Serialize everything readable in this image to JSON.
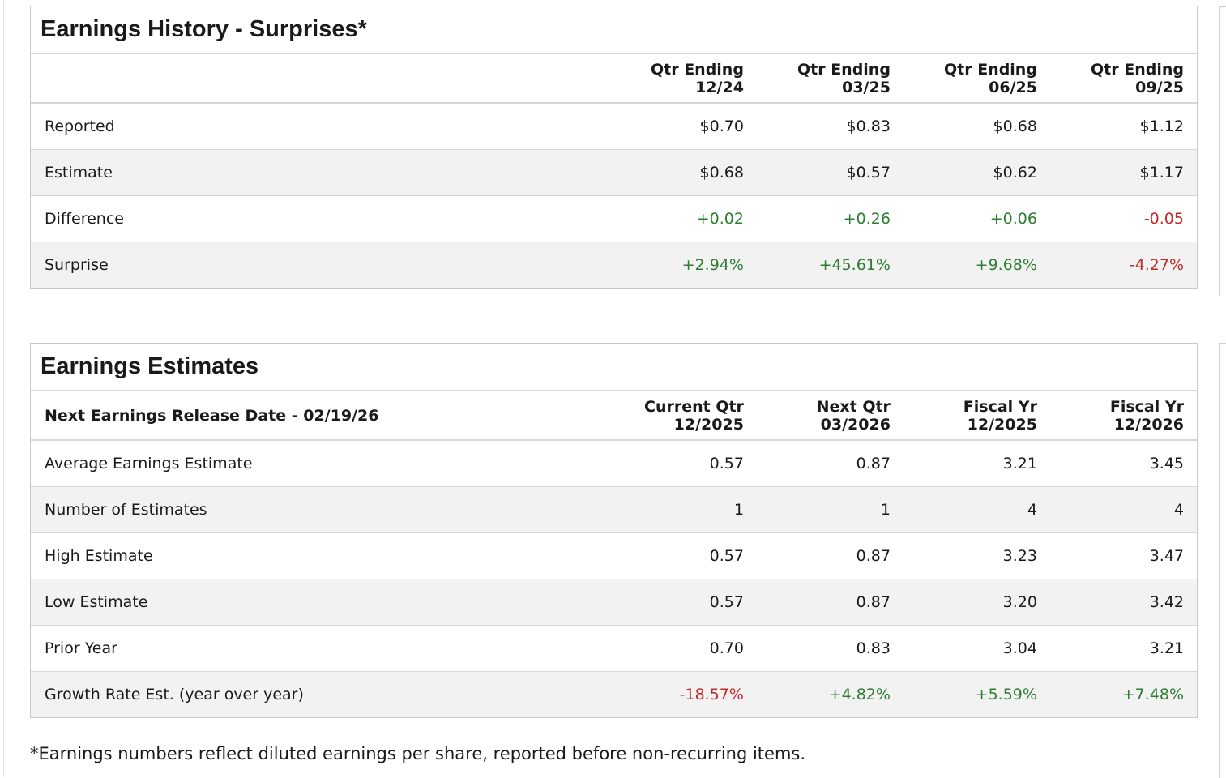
{
  "colors": {
    "positive": "#2e7d32",
    "negative": "#c62828",
    "header_border": "#d7d7d7",
    "alt_row": "#f2f2f2"
  },
  "history": {
    "title": "Earnings History - Surprises*",
    "columns": [
      {
        "line1": "Qtr Ending",
        "line2": "12/24"
      },
      {
        "line1": "Qtr Ending",
        "line2": "03/25"
      },
      {
        "line1": "Qtr Ending",
        "line2": "06/25"
      },
      {
        "line1": "Qtr Ending",
        "line2": "09/25"
      }
    ],
    "rows": [
      {
        "label": "Reported",
        "values": [
          "$0.70",
          "$0.83",
          "$0.68",
          "$1.12"
        ]
      },
      {
        "label": "Estimate",
        "values": [
          "$0.68",
          "$0.57",
          "$0.62",
          "$1.17"
        ]
      },
      {
        "label": "Difference",
        "values": [
          "+0.02",
          "+0.26",
          "+0.06",
          "-0.05"
        ]
      },
      {
        "label": "Surprise",
        "values": [
          "+2.94%",
          "+45.61%",
          "+9.68%",
          "-4.27%"
        ]
      }
    ]
  },
  "estimates": {
    "title": "Earnings Estimates",
    "release_label": "Next Earnings Release Date - 02/19/26",
    "columns": [
      {
        "line1": "Current Qtr",
        "line2": "12/2025"
      },
      {
        "line1": "Next Qtr",
        "line2": "03/2026"
      },
      {
        "line1": "Fiscal Yr",
        "line2": "12/2025"
      },
      {
        "line1": "Fiscal Yr",
        "line2": "12/2026"
      }
    ],
    "rows": [
      {
        "label": "Average Earnings Estimate",
        "values": [
          "0.57",
          "0.87",
          "3.21",
          "3.45"
        ]
      },
      {
        "label": "Number of Estimates",
        "values": [
          "1",
          "1",
          "4",
          "4"
        ]
      },
      {
        "label": "High Estimate",
        "values": [
          "0.57",
          "0.87",
          "3.23",
          "3.47"
        ]
      },
      {
        "label": "Low Estimate",
        "values": [
          "0.57",
          "0.87",
          "3.20",
          "3.42"
        ]
      },
      {
        "label": "Prior Year",
        "values": [
          "0.70",
          "0.83",
          "3.04",
          "3.21"
        ]
      },
      {
        "label": "Growth Rate Est. (year over year)",
        "values": [
          "-18.57%",
          "+4.82%",
          "+5.59%",
          "+7.48%"
        ]
      }
    ]
  },
  "footnote": "*Earnings numbers reflect diluted earnings per share, reported before non-recurring items."
}
